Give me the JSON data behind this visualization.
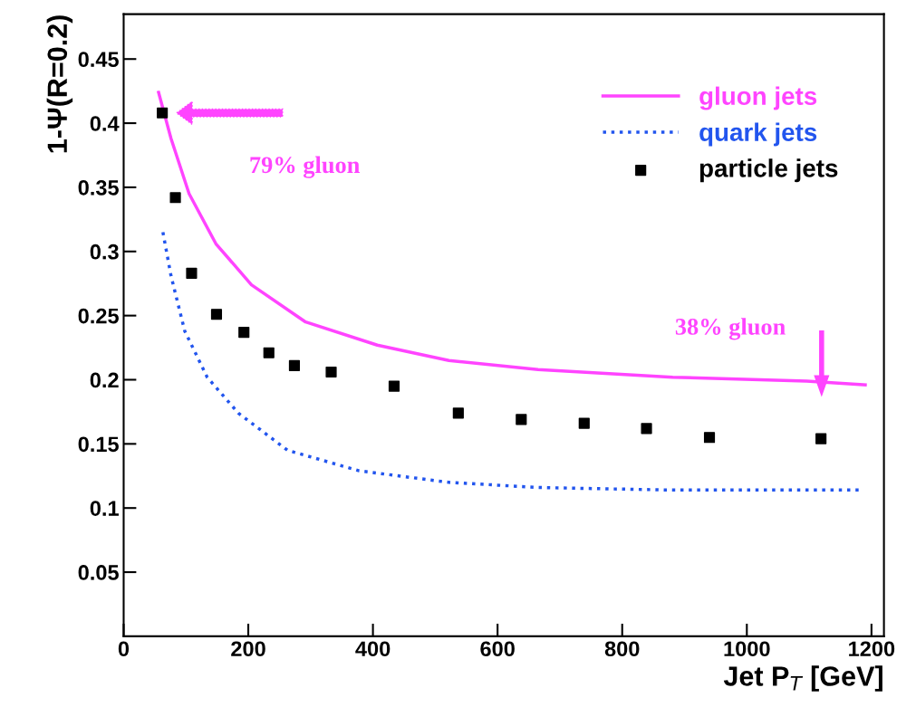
{
  "chart_data": {
    "type": "line",
    "xlabel": "Jet P$_{T}$ [GeV]",
    "ylabel": "1-Ψ(R=0.2)",
    "xlim": [
      0,
      1220
    ],
    "xticks": [
      0,
      200,
      400,
      600,
      800,
      1000,
      1200
    ],
    "ylim": [
      0,
      0.485
    ],
    "yticks": [
      0.05,
      0.1,
      0.15,
      0.2,
      0.25,
      0.3,
      0.35,
      0.4,
      0.45
    ],
    "grid": false,
    "legend": "top right",
    "annotations": [
      "79% gluon",
      "38% gluon"
    ],
    "series": [
      {
        "name": "gluon jets",
        "color": "#ff44ff",
        "line_style": "solid",
        "x": [
          56,
          76,
          105,
          148,
          205,
          292,
          407,
          522,
          665,
          881,
          1096,
          1190
        ],
        "values": [
          0.424,
          0.388,
          0.345,
          0.306,
          0.274,
          0.245,
          0.227,
          0.215,
          0.208,
          0.202,
          0.199,
          0.196
        ]
      },
      {
        "name": "quark jets",
        "color": "#2255ee",
        "line_style": "dotted",
        "x": [
          63,
          76,
          98,
          134,
          184,
          263,
          378,
          522,
          665,
          881,
          1182
        ],
        "values": [
          0.315,
          0.281,
          0.238,
          0.202,
          0.174,
          0.145,
          0.129,
          0.12,
          0.116,
          0.114,
          0.114
        ]
      },
      {
        "name": "particle jets",
        "type": "scatter",
        "color": "#000000",
        "marker": "square",
        "x": [
          62,
          83,
          109,
          149,
          193,
          233,
          274,
          333,
          434,
          537,
          638,
          739,
          839,
          940,
          1119
        ],
        "values": [
          0.408,
          0.342,
          0.283,
          0.251,
          0.237,
          0.221,
          0.211,
          0.206,
          0.195,
          0.174,
          0.169,
          0.166,
          0.162,
          0.155,
          0.154
        ]
      }
    ]
  }
}
